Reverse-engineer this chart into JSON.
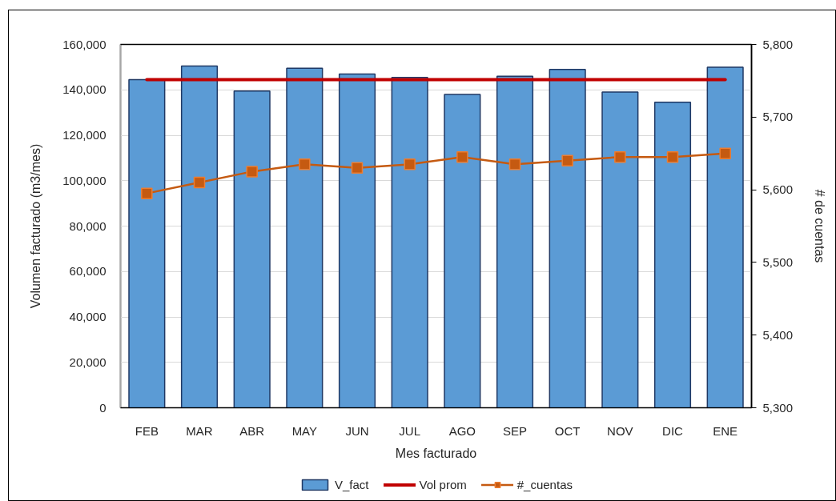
{
  "chart_data": {
    "type": "bar",
    "xlabel": "Mes facturado",
    "ylabel": "Volumen facturado (m3/mes)",
    "y2label": "# de cuentas",
    "categories": [
      "FEB",
      "MAR",
      "ABR",
      "MAY",
      "JUN",
      "JUL",
      "AGO",
      "SEP",
      "OCT",
      "NOV",
      "DIC",
      "ENE"
    ],
    "series": [
      {
        "name": "V_fact",
        "color": "#5b9bd5",
        "values": [
          144500,
          150500,
          139500,
          149500,
          147000,
          145500,
          138000,
          146000,
          149000,
          139000,
          134500,
          150000
        ]
      },
      {
        "name": "Vol prom",
        "type": "line",
        "color": "#c00000",
        "marker": "none",
        "values": [
          144500,
          144500,
          144500,
          144500,
          144500,
          144500,
          144500,
          144500,
          144500,
          144500,
          144500,
          144500
        ]
      },
      {
        "name": "#_cuentas",
        "type": "line",
        "color": "#c55a11",
        "axis": "y2",
        "marker": "square",
        "values": [
          5595,
          5610,
          5625,
          5635,
          5630,
          5635,
          5645,
          5635,
          5640,
          5645,
          5645,
          5650
        ]
      }
    ],
    "ylim": [
      0,
      160000
    ],
    "yticks": [
      0,
      {
        "value": 20000,
        "label": "20,000"
      },
      {
        "value": 40000,
        "label": "40,000"
      },
      {
        "value": 60000,
        "label": "60,000"
      },
      {
        "value": 80000,
        "label": "80,000"
      },
      {
        "value": 100000,
        "label": "100,000"
      },
      {
        "value": 120000,
        "label": "120,000"
      },
      {
        "value": 140000,
        "label": "140,000"
      },
      {
        "value": 160000,
        "label": "160,000"
      }
    ],
    "y2lim": [
      5300,
      5800
    ],
    "y2ticks": [
      {
        "value": 5300,
        "label": "5,300"
      },
      {
        "value": 5400,
        "label": "5,400"
      },
      {
        "value": 5500,
        "label": "5,500"
      },
      {
        "value": 5600,
        "label": "5,600"
      },
      {
        "value": 5700,
        "label": "5,700"
      },
      {
        "value": 5800,
        "label": "5,800"
      }
    ],
    "grid": "y",
    "legend": "bottom",
    "line_style": "solid"
  }
}
